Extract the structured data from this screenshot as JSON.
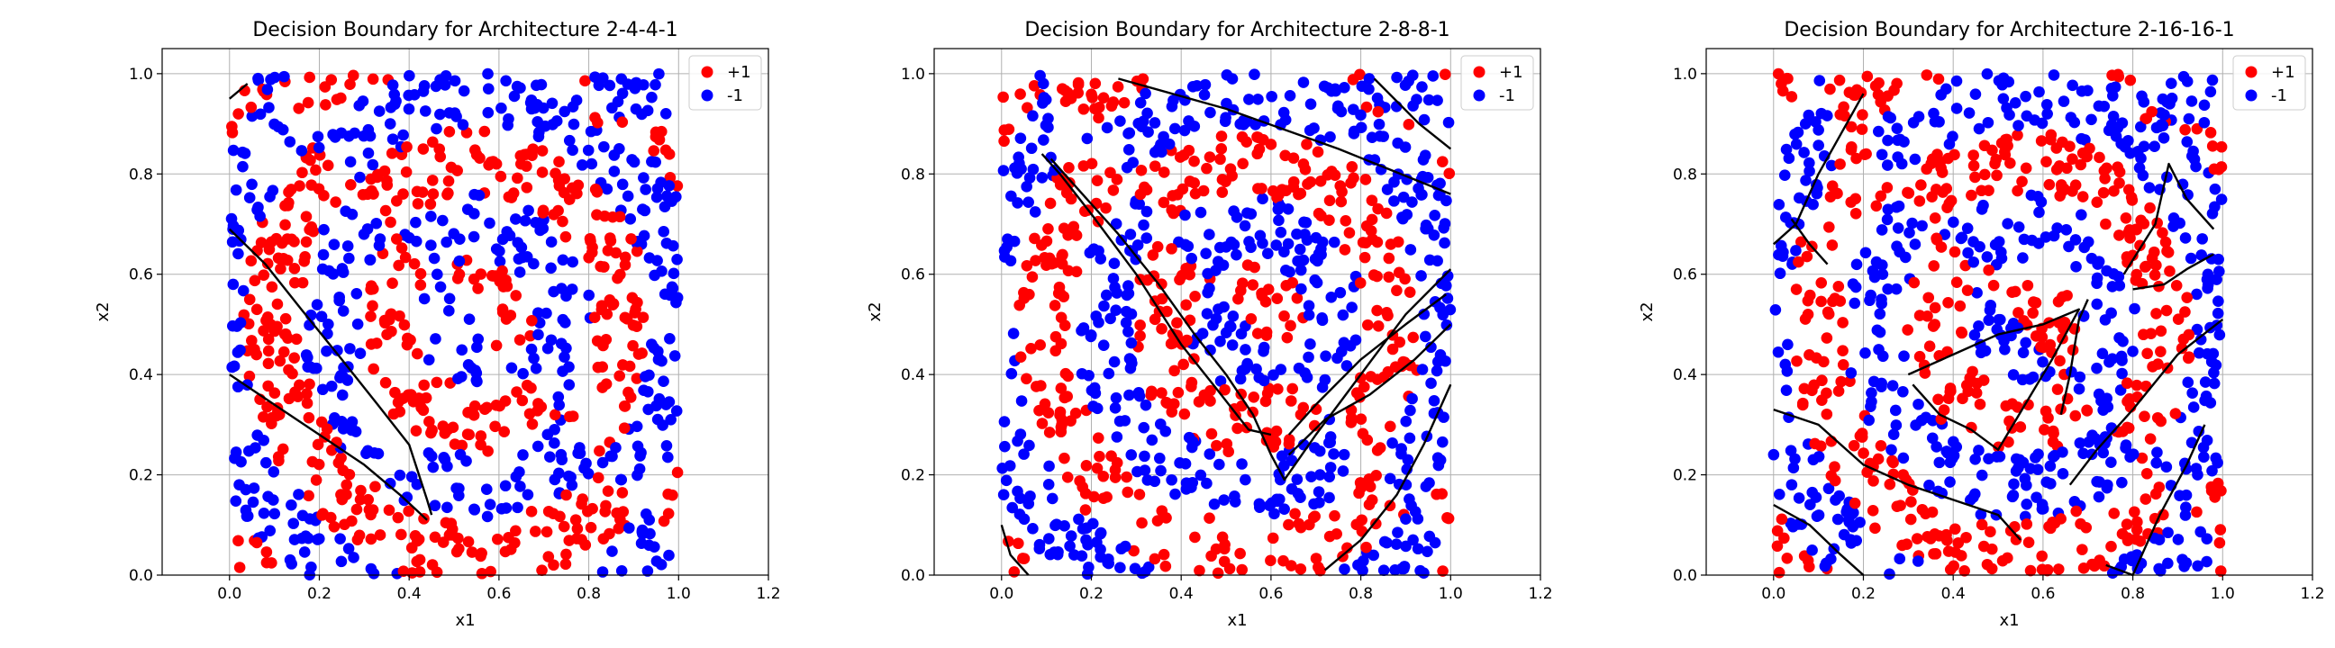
{
  "chart_data": [
    {
      "type": "scatter",
      "title": "Decision Boundary for Architecture 2-4-4-1",
      "xlabel": "x1",
      "ylabel": "x2",
      "xlim": [
        -0.15,
        1.2
      ],
      "ylim": [
        0.0,
        1.05
      ],
      "xticks": [
        "0.0",
        "0.2",
        "0.4",
        "0.6",
        "0.8",
        "1.0",
        "1.2"
      ],
      "yticks": [
        "0.0",
        "0.2",
        "0.4",
        "0.6",
        "0.8",
        "1.0"
      ],
      "grid": true,
      "legend_position": "top-right",
      "series": [
        {
          "name": "+1",
          "color": "#ff0000"
        },
        {
          "name": "-1",
          "color": "#0000ff"
        }
      ],
      "boundary": [
        [
          [
            0.0,
            0.95
          ],
          [
            0.04,
            0.98
          ]
        ],
        [
          [
            0.0,
            0.69
          ],
          [
            0.08,
            0.62
          ],
          [
            0.16,
            0.53
          ],
          [
            0.25,
            0.43
          ],
          [
            0.33,
            0.34
          ],
          [
            0.4,
            0.26
          ],
          [
            0.44,
            0.15
          ],
          [
            0.45,
            0.12
          ]
        ],
        [
          [
            0.0,
            0.4
          ],
          [
            0.1,
            0.34
          ],
          [
            0.2,
            0.28
          ],
          [
            0.3,
            0.22
          ],
          [
            0.38,
            0.16
          ],
          [
            0.44,
            0.11
          ]
        ]
      ]
    },
    {
      "type": "scatter",
      "title": "Decision Boundary for Architecture 2-8-8-1",
      "xlabel": "x1",
      "ylabel": "x2",
      "xlim": [
        -0.15,
        1.2
      ],
      "ylim": [
        0.0,
        1.05
      ],
      "xticks": [
        "0.0",
        "0.2",
        "0.4",
        "0.6",
        "0.8",
        "1.0",
        "1.2"
      ],
      "yticks": [
        "0.0",
        "0.2",
        "0.4",
        "0.6",
        "0.8",
        "1.0"
      ],
      "grid": true,
      "legend_position": "top-right",
      "series": [
        {
          "name": "+1",
          "color": "#ff0000"
        },
        {
          "name": "-1",
          "color": "#0000ff"
        }
      ],
      "boundary": [
        [
          [
            0.26,
            0.99
          ],
          [
            0.5,
            0.93
          ],
          [
            0.75,
            0.85
          ],
          [
            1.0,
            0.76
          ]
        ],
        [
          [
            0.83,
            0.99
          ],
          [
            0.93,
            0.9
          ],
          [
            1.0,
            0.85
          ]
        ],
        [
          [
            0.11,
            0.83
          ],
          [
            0.18,
            0.76
          ],
          [
            0.26,
            0.68
          ],
          [
            0.35,
            0.58
          ],
          [
            0.43,
            0.48
          ],
          [
            0.5,
            0.4
          ],
          [
            0.56,
            0.32
          ],
          [
            0.6,
            0.24
          ],
          [
            0.63,
            0.19
          ],
          [
            0.7,
            0.28
          ],
          [
            0.8,
            0.4
          ],
          [
            0.9,
            0.52
          ],
          [
            1.0,
            0.61
          ]
        ],
        [
          [
            0.09,
            0.84
          ],
          [
            0.13,
            0.8
          ],
          [
            0.2,
            0.72
          ],
          [
            0.3,
            0.6
          ],
          [
            0.4,
            0.46
          ],
          [
            0.48,
            0.37
          ],
          [
            0.55,
            0.29
          ],
          [
            0.6,
            0.28
          ]
        ],
        [
          [
            0.64,
            0.28
          ],
          [
            0.7,
            0.34
          ],
          [
            0.8,
            0.43
          ],
          [
            0.9,
            0.5
          ],
          [
            0.99,
            0.56
          ]
        ],
        [
          [
            0.64,
            0.24
          ],
          [
            0.72,
            0.31
          ],
          [
            0.82,
            0.36
          ],
          [
            0.92,
            0.43
          ],
          [
            1.0,
            0.5
          ]
        ],
        [
          [
            0.72,
            0.01
          ],
          [
            0.8,
            0.07
          ],
          [
            0.88,
            0.16
          ],
          [
            0.94,
            0.26
          ],
          [
            1.0,
            0.38
          ]
        ],
        [
          [
            0.0,
            0.1
          ],
          [
            0.02,
            0.04
          ],
          [
            0.06,
            0.0
          ]
        ]
      ]
    },
    {
      "type": "scatter",
      "title": "Decision Boundary for Architecture 2-16-16-1",
      "xlabel": "x1",
      "ylabel": "x2",
      "xlim": [
        -0.15,
        1.2
      ],
      "ylim": [
        0.0,
        1.05
      ],
      "xticks": [
        "0.0",
        "0.2",
        "0.4",
        "0.6",
        "0.8",
        "1.0",
        "1.2"
      ],
      "yticks": [
        "0.0",
        "0.2",
        "0.4",
        "0.6",
        "0.8",
        "1.0"
      ],
      "grid": true,
      "legend_position": "top-right",
      "series": [
        {
          "name": "+1",
          "color": "#ff0000"
        },
        {
          "name": "-1",
          "color": "#0000ff"
        }
      ],
      "boundary": [
        [
          [
            0.0,
            0.66
          ],
          [
            0.05,
            0.7
          ],
          [
            0.1,
            0.8
          ],
          [
            0.15,
            0.88
          ],
          [
            0.2,
            0.96
          ]
        ],
        [
          [
            0.04,
            0.71
          ],
          [
            0.08,
            0.66
          ],
          [
            0.12,
            0.62
          ]
        ],
        [
          [
            0.78,
            0.6
          ],
          [
            0.85,
            0.7
          ],
          [
            0.88,
            0.82
          ],
          [
            0.92,
            0.75
          ],
          [
            0.98,
            0.69
          ]
        ],
        [
          [
            0.8,
            0.57
          ],
          [
            0.87,
            0.58
          ],
          [
            0.92,
            0.61
          ],
          [
            0.98,
            0.64
          ]
        ],
        [
          [
            0.3,
            0.4
          ],
          [
            0.4,
            0.44
          ],
          [
            0.5,
            0.48
          ],
          [
            0.6,
            0.5
          ],
          [
            0.68,
            0.53
          ],
          [
            0.62,
            0.43
          ],
          [
            0.56,
            0.34
          ],
          [
            0.5,
            0.25
          ],
          [
            0.44,
            0.29
          ],
          [
            0.37,
            0.32
          ],
          [
            0.31,
            0.38
          ]
        ],
        [
          [
            0.66,
            0.18
          ],
          [
            0.72,
            0.25
          ],
          [
            0.8,
            0.33
          ],
          [
            0.9,
            0.44
          ],
          [
            1.0,
            0.51
          ]
        ],
        [
          [
            0.64,
            0.32
          ],
          [
            0.66,
            0.4
          ],
          [
            0.68,
            0.51
          ],
          [
            0.7,
            0.55
          ]
        ],
        [
          [
            0.0,
            0.33
          ],
          [
            0.1,
            0.3
          ],
          [
            0.2,
            0.22
          ],
          [
            0.3,
            0.18
          ],
          [
            0.4,
            0.15
          ],
          [
            0.5,
            0.12
          ],
          [
            0.55,
            0.07
          ]
        ],
        [
          [
            0.0,
            0.14
          ],
          [
            0.08,
            0.1
          ],
          [
            0.15,
            0.04
          ],
          [
            0.2,
            0.0
          ]
        ],
        [
          [
            0.74,
            0.02
          ],
          [
            0.8,
            0.0
          ],
          [
            0.86,
            0.12
          ],
          [
            0.92,
            0.22
          ],
          [
            0.96,
            0.3
          ]
        ]
      ]
    }
  ]
}
